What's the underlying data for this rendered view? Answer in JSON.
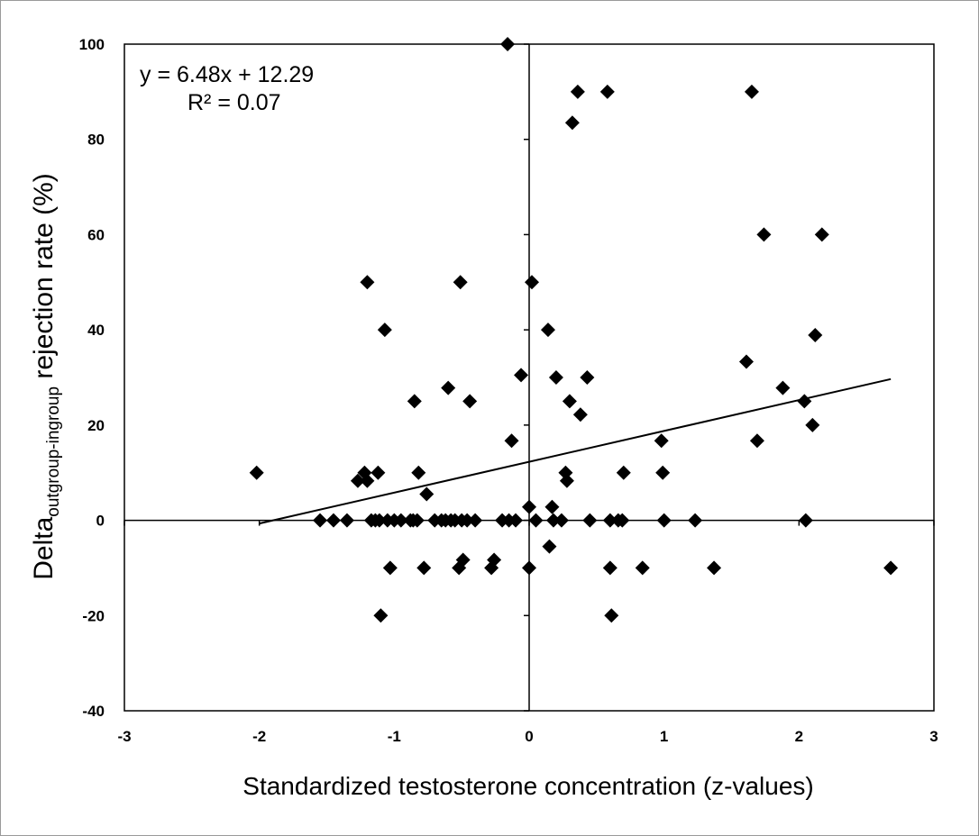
{
  "chart_data": {
    "type": "scatter",
    "xlabel": "Standardized testosterone concentration (z-values)",
    "ylabel_main": "Delta",
    "ylabel_sub": "outgroup-ingroup",
    "ylabel_rest": " rejection rate (%)",
    "xlim": [
      -3,
      3
    ],
    "ylim": [
      -40,
      100
    ],
    "x_ticks": [
      -3,
      -2,
      -1,
      0,
      1,
      2,
      3
    ],
    "y_ticks": [
      -40,
      -20,
      0,
      20,
      40,
      60,
      80,
      100
    ],
    "grid": false,
    "marker": "diamond",
    "marker_color": "#000000",
    "equation": "y = 6.48x + 12.29",
    "r_squared": "R² = 0.07",
    "trendline": {
      "slope": 6.48,
      "intercept": 12.29,
      "x_range": [
        -2.0,
        2.68
      ]
    },
    "points": [
      [
        -2.02,
        10
      ],
      [
        -1.55,
        0
      ],
      [
        -1.45,
        0
      ],
      [
        -1.35,
        0
      ],
      [
        -1.27,
        8.3
      ],
      [
        -1.22,
        10
      ],
      [
        -1.2,
        8.3
      ],
      [
        -1.2,
        50
      ],
      [
        -1.17,
        0
      ],
      [
        -1.14,
        0
      ],
      [
        -1.12,
        10
      ],
      [
        -1.11,
        0
      ],
      [
        -1.1,
        -20
      ],
      [
        -1.07,
        40
      ],
      [
        -1.05,
        0
      ],
      [
        -1.03,
        -10
      ],
      [
        -1.0,
        0
      ],
      [
        -0.95,
        0
      ],
      [
        -0.88,
        0
      ],
      [
        -0.86,
        0
      ],
      [
        -0.85,
        25
      ],
      [
        -0.83,
        0
      ],
      [
        -0.82,
        10
      ],
      [
        -0.78,
        -10
      ],
      [
        -0.76,
        5.5
      ],
      [
        -0.7,
        0
      ],
      [
        -0.65,
        0
      ],
      [
        -0.62,
        0
      ],
      [
        -0.6,
        27.8
      ],
      [
        -0.58,
        0
      ],
      [
        -0.55,
        0
      ],
      [
        -0.52,
        -10
      ],
      [
        -0.51,
        50
      ],
      [
        -0.5,
        0
      ],
      [
        -0.49,
        -8.3
      ],
      [
        -0.46,
        0
      ],
      [
        -0.44,
        25
      ],
      [
        -0.4,
        0
      ],
      [
        -0.28,
        -10
      ],
      [
        -0.26,
        -8.3
      ],
      [
        -0.2,
        0
      ],
      [
        -0.16,
        100
      ],
      [
        -0.15,
        0
      ],
      [
        -0.13,
        16.7
      ],
      [
        -0.1,
        0
      ],
      [
        -0.06,
        30.5
      ],
      [
        0.0,
        2.8
      ],
      [
        0.0,
        -10
      ],
      [
        0.02,
        50
      ],
      [
        0.05,
        0
      ],
      [
        0.14,
        40
      ],
      [
        0.15,
        -5.5
      ],
      [
        0.17,
        2.8
      ],
      [
        0.18,
        0
      ],
      [
        0.2,
        30
      ],
      [
        0.24,
        0
      ],
      [
        0.27,
        10
      ],
      [
        0.28,
        8.3
      ],
      [
        0.3,
        25
      ],
      [
        0.32,
        83.5
      ],
      [
        0.36,
        90
      ],
      [
        0.38,
        22.2
      ],
      [
        0.43,
        30
      ],
      [
        0.45,
        0
      ],
      [
        0.58,
        90
      ],
      [
        0.6,
        -10
      ],
      [
        0.6,
        0
      ],
      [
        0.61,
        -20
      ],
      [
        0.66,
        0
      ],
      [
        0.69,
        0
      ],
      [
        0.7,
        10
      ],
      [
        0.84,
        -10
      ],
      [
        0.98,
        16.7
      ],
      [
        0.99,
        10
      ],
      [
        1.0,
        0
      ],
      [
        1.23,
        0
      ],
      [
        1.37,
        -10
      ],
      [
        1.61,
        33.3
      ],
      [
        1.65,
        90
      ],
      [
        1.69,
        16.7
      ],
      [
        1.74,
        60
      ],
      [
        1.88,
        27.8
      ],
      [
        2.04,
        25
      ],
      [
        2.05,
        0
      ],
      [
        2.1,
        20
      ],
      [
        2.12,
        38.9
      ],
      [
        2.17,
        60
      ],
      [
        2.68,
        -10
      ]
    ]
  }
}
